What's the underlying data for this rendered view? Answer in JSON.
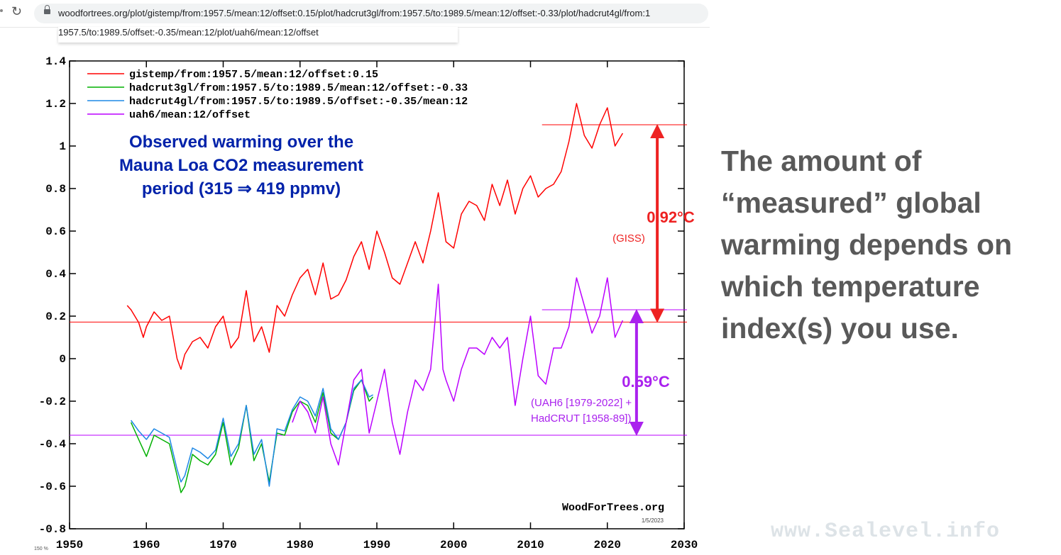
{
  "browser": {
    "url_line1": "woodfortrees.org/plot/gistemp/from:1957.5/mean:12/offset:0.15/plot/hadcrut3gl/from:1957.5/to:1989.5/mean:12/offset:-0.33/plot/hadcrut4gl/from:1",
    "url_line2": "1957.5/to:1989.5/offset:-0.35/mean:12/plot/uah6/mean:12/offset",
    "zoom": "150 %"
  },
  "headline": "The amount of “measured” global warming depends on which temperature index(s) you use.",
  "watermark": "www.Sealevel.info",
  "colors": {
    "gistemp": "#ff0000",
    "hadcrut3gl": "#00b000",
    "hadcrut4gl": "#1e88e5",
    "uah6": "#bb00ff",
    "annot_red": "#ee2222",
    "annot_purple": "#aa22ee",
    "title_blue": "#0022aa"
  },
  "chart_data": {
    "type": "line",
    "xlim": [
      1950,
      2030
    ],
    "ylim": [
      -0.8,
      1.4
    ],
    "x_ticks": [
      "1950",
      "1960",
      "1970",
      "1980",
      "1990",
      "2000",
      "2010",
      "2020",
      "2030"
    ],
    "y_ticks": [
      "1.4",
      "1.2",
      "1",
      "0.8",
      "0.6",
      "0.4",
      "0.2",
      "0",
      "-0.2",
      "-0.4",
      "-0.6",
      "-0.8"
    ],
    "legend": [
      "gistemp/from:1957.5/mean:12/offset:0.15",
      "hadcrut3gl/from:1957.5/to:1989.5/mean:12/offset:-0.33",
      "hadcrut4gl/from:1957.5/to:1989.5/offset:-0.35/mean:12",
      "uah6/mean:12/offset"
    ],
    "title_lines": [
      "Observed warming over the",
      "Mauna Loa CO2 measurement",
      "period (315 ⇒ 419 ppmv)"
    ],
    "credit": "WoodForTrees.org",
    "date_stamp": "1/5/2023",
    "series": [
      {
        "name": "gistemp",
        "key": "gistemp",
        "x": [
          1957.5,
          1958,
          1959,
          1959.6,
          1960,
          1961,
          1962,
          1963,
          1964,
          1964.5,
          1965,
          1966,
          1967,
          1968,
          1969,
          1970,
          1971,
          1972,
          1973,
          1974,
          1975,
          1976,
          1977,
          1978,
          1979,
          1980,
          1981,
          1982,
          1983,
          1984,
          1985,
          1986,
          1987,
          1988,
          1989,
          1990,
          1991,
          1992,
          1993,
          1994,
          1995,
          1996,
          1997,
          1998,
          1999,
          2000,
          2001,
          2002,
          2003,
          2004,
          2005,
          2006,
          2007,
          2008,
          2009,
          2010,
          2011,
          2012,
          2013,
          2014,
          2015,
          2016,
          2017,
          2018,
          2019,
          2020,
          2021,
          2022
        ],
        "y": [
          0.25,
          0.23,
          0.17,
          0.1,
          0.15,
          0.22,
          0.18,
          0.2,
          0.0,
          -0.05,
          0.02,
          0.08,
          0.1,
          0.05,
          0.15,
          0.2,
          0.05,
          0.1,
          0.32,
          0.08,
          0.15,
          0.03,
          0.25,
          0.2,
          0.3,
          0.38,
          0.42,
          0.3,
          0.45,
          0.28,
          0.3,
          0.37,
          0.48,
          0.55,
          0.42,
          0.6,
          0.5,
          0.38,
          0.35,
          0.45,
          0.55,
          0.45,
          0.6,
          0.78,
          0.55,
          0.52,
          0.68,
          0.74,
          0.72,
          0.65,
          0.82,
          0.72,
          0.84,
          0.68,
          0.8,
          0.86,
          0.76,
          0.8,
          0.82,
          0.88,
          1.02,
          1.2,
          1.05,
          0.99,
          1.1,
          1.18,
          1.0,
          1.06
        ]
      },
      {
        "name": "hadcrut3gl",
        "key": "hadcrut3gl",
        "x": [
          1958,
          1959,
          1960,
          1961,
          1962,
          1963,
          1964,
          1964.5,
          1965,
          1966,
          1967,
          1968,
          1969,
          1970,
          1971,
          1972,
          1973,
          1974,
          1975,
          1976,
          1977,
          1978,
          1979,
          1980,
          1981,
          1982,
          1983,
          1984,
          1985,
          1986,
          1987,
          1988,
          1989,
          1989.5
        ],
        "y": [
          -0.3,
          -0.38,
          -0.46,
          -0.36,
          -0.38,
          -0.4,
          -0.55,
          -0.63,
          -0.6,
          -0.45,
          -0.48,
          -0.5,
          -0.45,
          -0.3,
          -0.5,
          -0.42,
          -0.22,
          -0.48,
          -0.4,
          -0.58,
          -0.35,
          -0.36,
          -0.25,
          -0.2,
          -0.22,
          -0.3,
          -0.16,
          -0.35,
          -0.38,
          -0.3,
          -0.15,
          -0.1,
          -0.2,
          -0.18
        ]
      },
      {
        "name": "hadcrut4gl",
        "key": "hadcrut4gl",
        "x": [
          1958,
          1959,
          1960,
          1961,
          1962,
          1963,
          1964,
          1964.5,
          1965,
          1966,
          1967,
          1968,
          1969,
          1970,
          1971,
          1972,
          1973,
          1974,
          1975,
          1976,
          1977,
          1978,
          1979,
          1980,
          1981,
          1982,
          1983,
          1984,
          1985,
          1986,
          1987,
          1988,
          1989,
          1989.5
        ],
        "y": [
          -0.29,
          -0.34,
          -0.38,
          -0.33,
          -0.35,
          -0.37,
          -0.52,
          -0.58,
          -0.55,
          -0.42,
          -0.44,
          -0.47,
          -0.43,
          -0.28,
          -0.46,
          -0.4,
          -0.22,
          -0.45,
          -0.38,
          -0.6,
          -0.33,
          -0.34,
          -0.24,
          -0.18,
          -0.2,
          -0.27,
          -0.14,
          -0.33,
          -0.38,
          -0.3,
          -0.14,
          -0.1,
          -0.18,
          -0.17
        ]
      },
      {
        "name": "uah6",
        "key": "uah6",
        "x": [
          1979,
          1980,
          1981,
          1982,
          1983,
          1984,
          1985,
          1986,
          1987,
          1988,
          1989,
          1990,
          1991,
          1992,
          1993,
          1994,
          1995,
          1996,
          1997,
          1998,
          1998.6,
          1999,
          2000,
          2001,
          2002,
          2003,
          2004,
          2005,
          2006,
          2007,
          2008,
          2009,
          2010,
          2011,
          2012,
          2013,
          2014,
          2015,
          2016,
          2017,
          2018,
          2019,
          2020,
          2021,
          2022
        ],
        "y": [
          -0.3,
          -0.2,
          -0.25,
          -0.35,
          -0.18,
          -0.4,
          -0.5,
          -0.3,
          -0.1,
          -0.05,
          -0.35,
          -0.2,
          -0.05,
          -0.3,
          -0.45,
          -0.25,
          -0.1,
          -0.15,
          -0.05,
          0.35,
          -0.05,
          -0.1,
          -0.2,
          -0.05,
          0.05,
          0.05,
          0.02,
          0.1,
          0.05,
          0.1,
          -0.22,
          0.0,
          0.2,
          -0.08,
          -0.12,
          0.05,
          0.05,
          0.15,
          0.38,
          0.25,
          0.12,
          0.2,
          0.38,
          0.1,
          0.18
        ]
      }
    ],
    "hlines": [
      {
        "y": 1.1,
        "key": "gistemp",
        "from": 2011.5
      },
      {
        "y": 0.23,
        "key": "uah6",
        "from": 2011.5
      },
      {
        "y": 0.172,
        "key": "gistemp",
        "from": 1950
      },
      {
        "y": -0.36,
        "key": "uah6",
        "from": 1950
      }
    ],
    "annotations": {
      "giss_delta": "0.92°C",
      "giss_label": "(GISS)",
      "uah_delta": "0.59°C",
      "uah_label_1": "(UAH6 [1979-2022] +",
      "uah_label_2": "HadCRUT [1958-89])"
    },
    "arrows": [
      {
        "x": 2026.5,
        "y_top": 1.1,
        "y_bottom": 0.172,
        "color": "annot_red"
      },
      {
        "x": 2023.8,
        "y_top": 0.23,
        "y_bottom": -0.36,
        "color": "annot_purple"
      }
    ]
  }
}
